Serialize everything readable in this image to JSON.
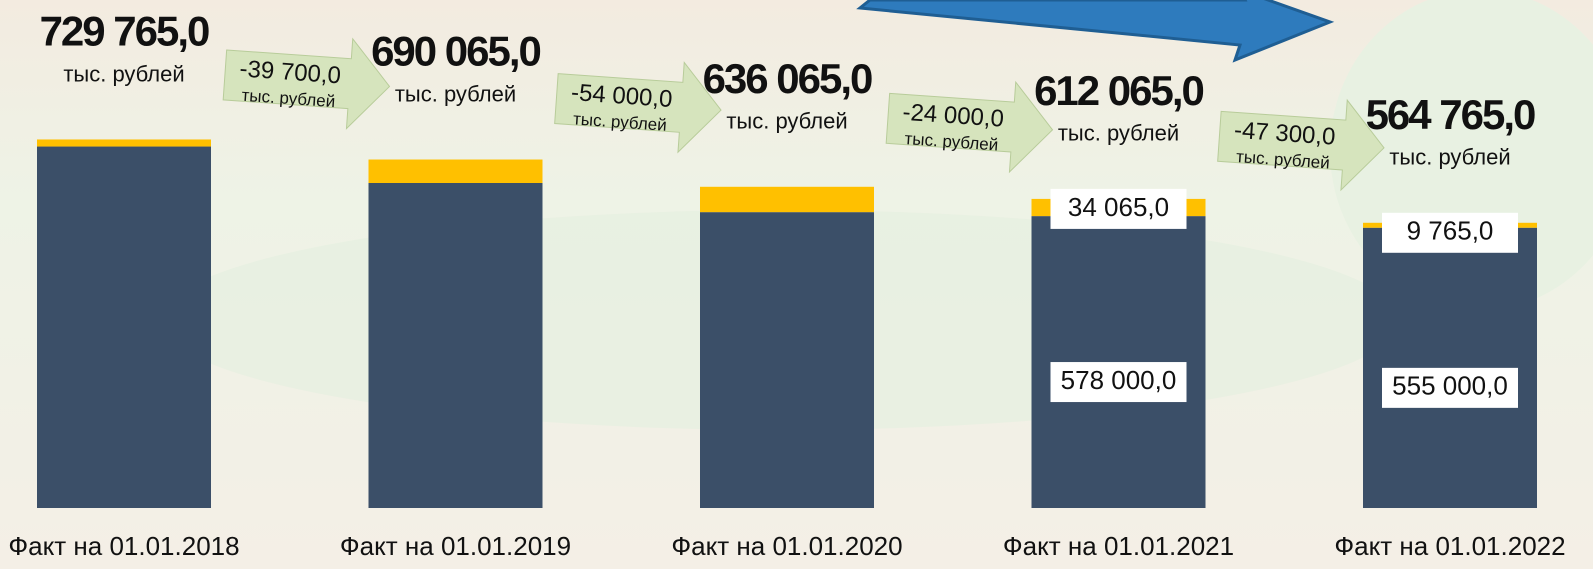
{
  "chart_data": {
    "type": "bar",
    "stacked": true,
    "categories": [
      "Факт на 01.01.2018",
      "Факт на 01.01.2019",
      "Факт на 01.01.2020",
      "Факт на 01.01.2021",
      "Факт на 01.01.2022"
    ],
    "series": [
      {
        "color": "#3b4f68",
        "values": [
          715765,
          643565,
          585865,
          578000,
          555000
        ],
        "value_labels": [
          null,
          null,
          null,
          "578 000,0",
          "555 000,0"
        ]
      },
      {
        "color": "#ffc000",
        "values": [
          14000,
          46500,
          50200,
          34065,
          9765
        ],
        "value_labels": [
          null,
          null,
          null,
          "34 065,0",
          "9 765,0"
        ]
      }
    ],
    "totals": [
      729765,
      690065,
      636065,
      612065,
      564765
    ],
    "total_labels": [
      "729 765,0",
      "690 065,0",
      "636 065,0",
      "612 065,0",
      "564 765,0"
    ],
    "changes": [
      -39700,
      -54000,
      -24000,
      -47300
    ],
    "change_labels": [
      "-39 700,0",
      "-54 000,0",
      "-24 000,0",
      "-47 300,0"
    ],
    "unit": "тыс. рублей",
    "ylim": [
      0,
      800000
    ]
  }
}
